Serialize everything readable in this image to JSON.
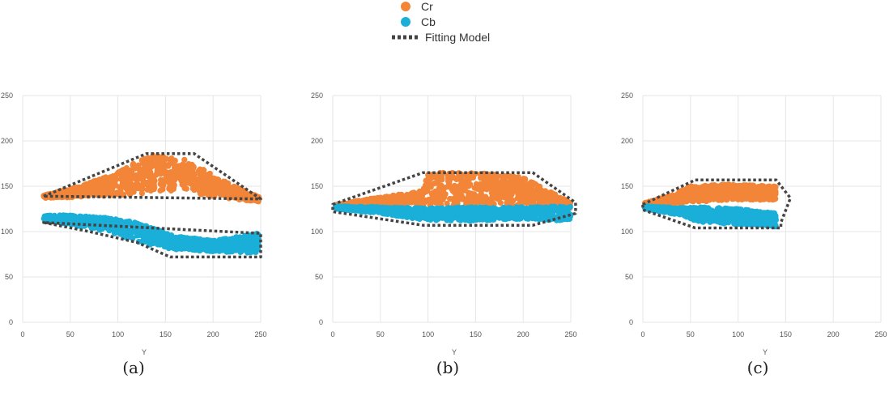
{
  "legend": {
    "items": [
      {
        "label": "Cr",
        "color": "#f28538",
        "marker": "circle"
      },
      {
        "label": "Cb",
        "color": "#1aafd8",
        "marker": "circle"
      },
      {
        "label": "Fitting Model",
        "color": "#444444",
        "marker": "dotted-line"
      }
    ]
  },
  "colors": {
    "cr": "#f28538",
    "cb": "#1aafd8",
    "fit": "#444444",
    "grid": "#e6e6e6"
  },
  "chart_data": [
    {
      "type": "scatter",
      "caption": "(a)",
      "xlabel": "Y",
      "ylabel": "",
      "xlim": [
        0,
        250
      ],
      "ylim": [
        0,
        250
      ],
      "xticks": [
        0,
        50,
        100,
        150,
        200,
        250
      ],
      "yticks": [
        0,
        50,
        100,
        150,
        200,
        250
      ],
      "grid": true,
      "series": [
        {
          "name": "Cr",
          "bands": [
            [
              22,
              137,
              140
            ],
            [
              60,
              138,
              150
            ],
            [
              100,
              140,
              165
            ],
            [
              130,
              142,
              185
            ],
            [
              170,
              145,
              180
            ],
            [
              200,
              138,
              162
            ],
            [
              248,
              133,
              138
            ]
          ]
        },
        {
          "name": "Cb",
          "bands": [
            [
              22,
              112,
              118
            ],
            [
              50,
              108,
              118
            ],
            [
              90,
              100,
              115
            ],
            [
              120,
              88,
              110
            ],
            [
              160,
              80,
              95
            ],
            [
              200,
              78,
              90
            ],
            [
              248,
              76,
              98
            ]
          ]
        }
      ],
      "fit_polygons": [
        [
          [
            22,
            139
          ],
          [
            130,
            186
          ],
          [
            180,
            186
          ],
          [
            250,
            136
          ]
        ],
        [
          [
            22,
            110
          ],
          [
            70,
            100
          ],
          [
            120,
            88
          ],
          [
            155,
            72
          ],
          [
            250,
            72
          ],
          [
            250,
            98
          ]
        ]
      ]
    },
    {
      "type": "scatter",
      "caption": "(b)",
      "xlabel": "Y",
      "ylabel": "",
      "xlim": [
        0,
        250
      ],
      "ylim": [
        0,
        250
      ],
      "xticks": [
        0,
        50,
        100,
        150,
        200,
        250
      ],
      "yticks": [
        0,
        50,
        100,
        150,
        200,
        250
      ],
      "grid": true,
      "series": [
        {
          "name": "Cr",
          "bands": [
            [
              3,
              126,
              130
            ],
            [
              50,
              128,
              138
            ],
            [
              95,
              130,
              145
            ],
            [
              100,
              128,
              165
            ],
            [
              150,
              130,
              165
            ],
            [
              200,
              128,
              160
            ],
            [
              250,
              125,
              132
            ]
          ]
        },
        {
          "name": "Cb",
          "bands": [
            [
              3,
              125,
              128
            ],
            [
              50,
              120,
              127
            ],
            [
              100,
              112,
              126
            ],
            [
              150,
              112,
              127
            ],
            [
              200,
              113,
              127
            ],
            [
              250,
              112,
              128
            ]
          ]
        }
      ],
      "fit_polygons": [
        [
          [
            0,
            130
          ],
          [
            95,
            165
          ],
          [
            210,
            165
          ],
          [
            255,
            132
          ],
          [
            255,
            120
          ],
          [
            210,
            107
          ],
          [
            95,
            107
          ],
          [
            0,
            122
          ]
        ]
      ]
    },
    {
      "type": "scatter",
      "caption": "(c)",
      "xlabel": "Y",
      "ylabel": "",
      "xlim": [
        0,
        250
      ],
      "ylim": [
        0,
        250
      ],
      "xticks": [
        0,
        50,
        100,
        150,
        200,
        250
      ],
      "yticks": [
        0,
        50,
        100,
        150,
        200,
        250
      ],
      "grid": true,
      "series": [
        {
          "name": "Cr",
          "bands": [
            [
              2,
              128,
              132
            ],
            [
              30,
              130,
              140
            ],
            [
              50,
              132,
              150
            ],
            [
              90,
              135,
              152
            ],
            [
              140,
              135,
              150
            ]
          ]
        },
        {
          "name": "Cb",
          "bands": [
            [
              2,
              125,
              128
            ],
            [
              40,
              118,
              126
            ],
            [
              60,
              110,
              127
            ],
            [
              100,
              108,
              125
            ],
            [
              140,
              105,
              120
            ]
          ]
        }
      ],
      "fit_polygons": [
        [
          [
            0,
            130
          ],
          [
            55,
            157
          ],
          [
            140,
            157
          ],
          [
            155,
            137
          ],
          [
            145,
            110
          ],
          [
            145,
            104
          ],
          [
            55,
            104
          ],
          [
            0,
            124
          ]
        ]
      ]
    }
  ]
}
